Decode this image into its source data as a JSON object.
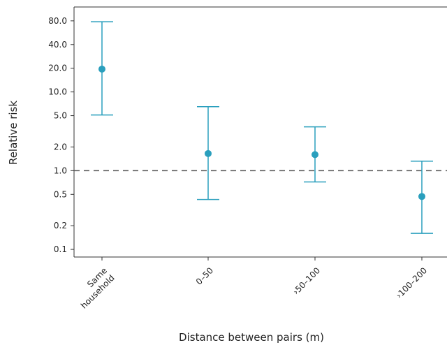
{
  "chart_data": {
    "type": "scatter",
    "subtype": "point-with-error-bars",
    "title": "",
    "xlabel": "Distance between pairs (m)",
    "ylabel": "Relative risk",
    "y_scale": "log",
    "ylim": [
      0.08,
      120
    ],
    "yticks": [
      0.1,
      0.2,
      0.5,
      1.0,
      2.0,
      5.0,
      10.0,
      20.0,
      40.0,
      80.0
    ],
    "ytick_labels": [
      "0.1",
      "0.2",
      "0.5",
      "1.0",
      "2.0",
      "5.0",
      "10.0",
      "20.0",
      "40.0",
      "80.0"
    ],
    "categories": [
      [
        "Same",
        "household"
      ],
      [
        "0–50"
      ],
      [
        "›50–100"
      ],
      [
        "›100–200"
      ]
    ],
    "series": [
      {
        "estimate": [
          19.5,
          1.65,
          1.6,
          0.47
        ],
        "lower": [
          5.1,
          0.43,
          0.72,
          0.16
        ],
        "upper": [
          78,
          6.5,
          3.6,
          1.32
        ]
      }
    ],
    "reference_line": {
      "y": 1.0,
      "style": "dashed"
    },
    "grid": false,
    "colors": {
      "points": "#2a9fbd",
      "error_bars": "#2a9fbd",
      "reference_line": "#555555",
      "axes": "#333333"
    }
  }
}
